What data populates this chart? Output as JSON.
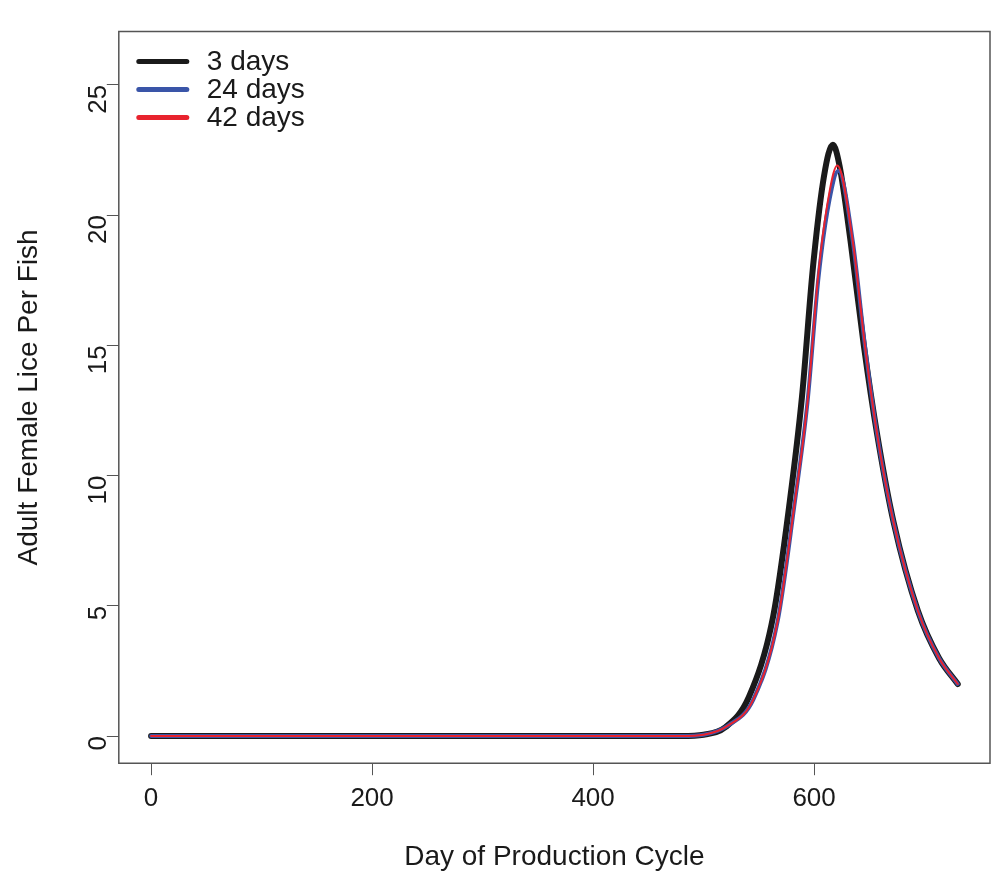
{
  "chart_data": {
    "type": "line",
    "xlabel": "Day of Production Cycle",
    "ylabel": "Adult Female Lice Per Fish",
    "xlim": [
      -29.2,
      759.2
    ],
    "ylim": [
      -1.04,
      27.04
    ],
    "xticks": [
      0,
      200,
      400,
      600
    ],
    "yticks": [
      0,
      5,
      10,
      15,
      20,
      25
    ],
    "grid": false,
    "legend": "top left",
    "marker": "none",
    "line_style": "solid",
    "series": [
      {
        "name": "3 days",
        "color": "#1a1a1a",
        "x": [
          0,
          200,
          400,
          480,
          500,
          520,
          541,
          563,
          578,
          589,
          599,
          609,
          617,
          623,
          633,
          645,
          657,
          672,
          694,
          713,
          730
        ],
        "values": [
          0,
          0,
          0,
          0,
          0.05,
          0.35,
          1.5,
          4.6,
          9,
          13,
          18,
          21.5,
          22.7,
          21.9,
          19,
          15,
          11.6,
          8.2,
          4.8,
          3,
          2
        ]
      },
      {
        "name": "24 days",
        "color": "#3a55a8",
        "x": [
          0,
          200,
          400,
          480,
          500,
          522,
          545,
          567,
          582,
          594,
          604,
          614,
          622,
          635,
          646,
          657,
          672,
          694,
          713,
          730
        ],
        "values": [
          0,
          0,
          0,
          0,
          0.05,
          0.4,
          1.4,
          4.4,
          8.8,
          12.8,
          17.6,
          20.6,
          21.7,
          19,
          15,
          11.6,
          8.2,
          4.8,
          3,
          2
        ]
      },
      {
        "name": "42 days",
        "color": "#e8232e",
        "x": [
          0,
          200,
          400,
          480,
          500,
          522,
          545,
          567,
          582,
          594,
          604,
          614,
          621,
          635,
          646,
          657,
          672,
          694,
          713,
          730
        ],
        "values": [
          0,
          0,
          0,
          0,
          0.05,
          0.4,
          1.4,
          4.4,
          8.8,
          12.8,
          17.8,
          20.9,
          21.9,
          19,
          15,
          11.6,
          8.2,
          4.8,
          3,
          2
        ]
      }
    ]
  }
}
